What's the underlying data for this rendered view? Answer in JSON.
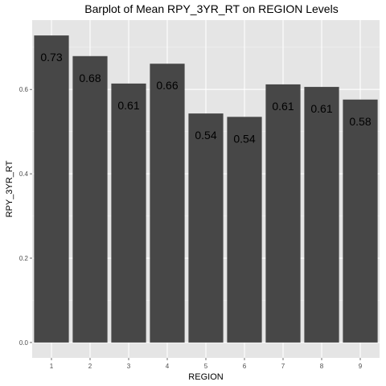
{
  "chart_data": {
    "type": "bar",
    "title": "Barplot of Mean RPY_3YR_RT on REGION Levels",
    "xlabel": "REGION",
    "ylabel": "RPY_3YR_RT",
    "categories": [
      "1",
      "2",
      "3",
      "4",
      "5",
      "6",
      "7",
      "8",
      "9"
    ],
    "values": [
      0.728,
      0.679,
      0.614,
      0.661,
      0.543,
      0.535,
      0.612,
      0.606,
      0.576
    ],
    "data_labels": [
      "0.73",
      "0.68",
      "0.61",
      "0.66",
      "0.54",
      "0.54",
      "0.61",
      "0.61",
      "0.58"
    ],
    "ylim": [
      -0.0364,
      0.7644
    ],
    "yticks": [
      0.0,
      0.2,
      0.4,
      0.6
    ],
    "ytick_labels": [
      "0.0",
      "0.2",
      "0.4",
      "0.6"
    ],
    "grid": true,
    "legend": "none",
    "colors": {
      "bar": "#474747",
      "panel_background": "#e5e5e5",
      "grid": "#ffffff"
    }
  }
}
